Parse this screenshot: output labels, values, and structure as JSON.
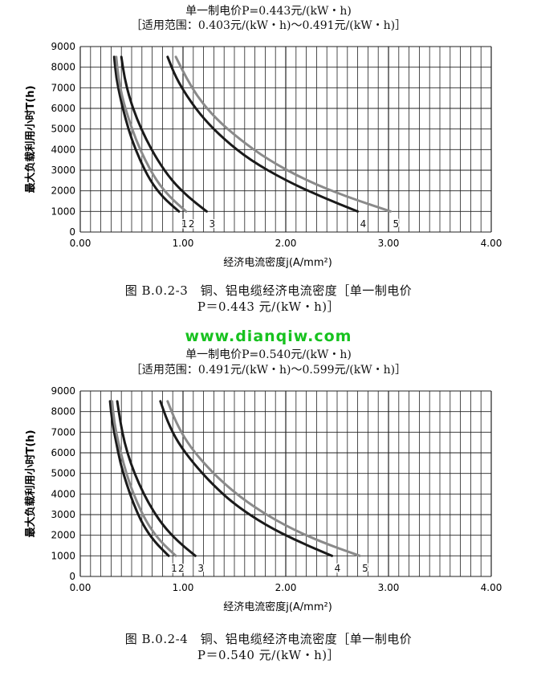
{
  "watermark": "www.dianqiw.com",
  "charts": [
    {
      "title": "单一制电价P=0.443元/(kW・h)",
      "subtitle": "［适用范围：0.403元/(kW・h)～0.491元/(kW・h)］",
      "caption_line1": "图 B.0.2-3　铜、铝电缆经济电流密度［单一制电价",
      "caption_line2": "P＝0.443 元/(kW・h)］"
    },
    {
      "title": "单一制电价P=0.540元/(kW・h)",
      "subtitle": "［适用范围：0.491元/(kW・h)～0.599元/(kW・h)］",
      "caption_line1": "图 B.0.2-4　铜、铝电缆经济电流密度［单一制电价",
      "caption_line2": "P＝0.540 元/(kW・h)］"
    }
  ],
  "chart_data": [
    {
      "type": "line",
      "title": "单一制电价P=0.443元/(kW・h)",
      "subtitle": "［适用范围：0.403元/(kW・h)～0.491元/(kW・h)］",
      "xlabel": "经济电流密度j(A/mm²)",
      "ylabel": "最大负载利用小时T(h)",
      "xlim": [
        0,
        4
      ],
      "ylim": [
        0,
        9000
      ],
      "xticks": [
        "0.00",
        "1.00",
        "2.00",
        "3.00",
        "4.00"
      ],
      "yticks": [
        "0",
        "1000",
        "2000",
        "3000",
        "4000",
        "5000",
        "6000",
        "7000",
        "8000",
        "9000"
      ],
      "grid": true,
      "series": [
        {
          "name": "1",
          "color": "#1a1a1a",
          "x": [
            0.33,
            0.35,
            0.39,
            0.44,
            0.5,
            0.58,
            0.68,
            0.8,
            0.96
          ],
          "y": [
            8500,
            7500,
            6500,
            5500,
            4500,
            3500,
            2500,
            1700,
            1000
          ]
        },
        {
          "name": "2",
          "color": "#8a8a8a",
          "x": [
            0.35,
            0.37,
            0.41,
            0.47,
            0.54,
            0.63,
            0.74,
            0.87,
            1.03
          ],
          "y": [
            8500,
            7500,
            6500,
            5500,
            4500,
            3500,
            2500,
            1700,
            1000
          ]
        },
        {
          "name": "3",
          "color": "#1a1a1a",
          "x": [
            0.4,
            0.43,
            0.48,
            0.55,
            0.64,
            0.75,
            0.89,
            1.05,
            1.23
          ],
          "y": [
            8500,
            7500,
            6500,
            5500,
            4500,
            3500,
            2500,
            1700,
            1000
          ]
        },
        {
          "name": "4",
          "color": "#1a1a1a",
          "x": [
            0.85,
            0.93,
            1.05,
            1.2,
            1.4,
            1.65,
            2.0,
            2.35,
            2.7
          ],
          "y": [
            8500,
            7500,
            6500,
            5500,
            4500,
            3500,
            2500,
            1700,
            1000
          ]
        },
        {
          "name": "5",
          "color": "#8a8a8a",
          "x": [
            0.93,
            1.03,
            1.15,
            1.32,
            1.55,
            1.83,
            2.2,
            2.6,
            3.02
          ],
          "y": [
            8500,
            7500,
            6500,
            5500,
            4500,
            3500,
            2500,
            1700,
            1000
          ]
        }
      ]
    },
    {
      "type": "line",
      "title": "单一制电价P=0.540元/(kW・h)",
      "subtitle": "［适用范围：0.491元/(kW・h)～0.599元/(kW・h)］",
      "xlabel": "经济电流密度j(A/mm²)",
      "ylabel": "最大负载利用小时T(h)",
      "xlim": [
        0,
        4
      ],
      "ylim": [
        0,
        9000
      ],
      "xticks": [
        "0.00",
        "1.00",
        "2.00",
        "3.00",
        "4.00"
      ],
      "yticks": [
        "0",
        "1000",
        "2000",
        "3000",
        "4000",
        "5000",
        "6000",
        "7000",
        "8000",
        "9000"
      ],
      "grid": true,
      "series": [
        {
          "name": "1",
          "color": "#1a1a1a",
          "x": [
            0.29,
            0.31,
            0.35,
            0.39,
            0.45,
            0.52,
            0.61,
            0.72,
            0.86
          ],
          "y": [
            8500,
            7500,
            6500,
            5500,
            4500,
            3500,
            2500,
            1700,
            1000
          ]
        },
        {
          "name": "2",
          "color": "#8a8a8a",
          "x": [
            0.31,
            0.33,
            0.37,
            0.42,
            0.48,
            0.56,
            0.66,
            0.78,
            0.93
          ],
          "y": [
            8500,
            7500,
            6500,
            5500,
            4500,
            3500,
            2500,
            1700,
            1000
          ]
        },
        {
          "name": "3",
          "color": "#1a1a1a",
          "x": [
            0.36,
            0.39,
            0.43,
            0.49,
            0.57,
            0.67,
            0.8,
            0.95,
            1.12
          ],
          "y": [
            8500,
            7500,
            6500,
            5500,
            4500,
            3500,
            2500,
            1700,
            1000
          ]
        },
        {
          "name": "4",
          "color": "#1a1a1a",
          "x": [
            0.78,
            0.85,
            0.95,
            1.1,
            1.28,
            1.5,
            1.8,
            2.12,
            2.45
          ],
          "y": [
            8500,
            7500,
            6500,
            5500,
            4500,
            3500,
            2500,
            1700,
            1000
          ]
        },
        {
          "name": "5",
          "color": "#8a8a8a",
          "x": [
            0.85,
            0.93,
            1.04,
            1.2,
            1.4,
            1.65,
            1.98,
            2.33,
            2.72
          ],
          "y": [
            8500,
            7500,
            6500,
            5500,
            4500,
            3500,
            2500,
            1700,
            1000
          ]
        }
      ]
    }
  ]
}
